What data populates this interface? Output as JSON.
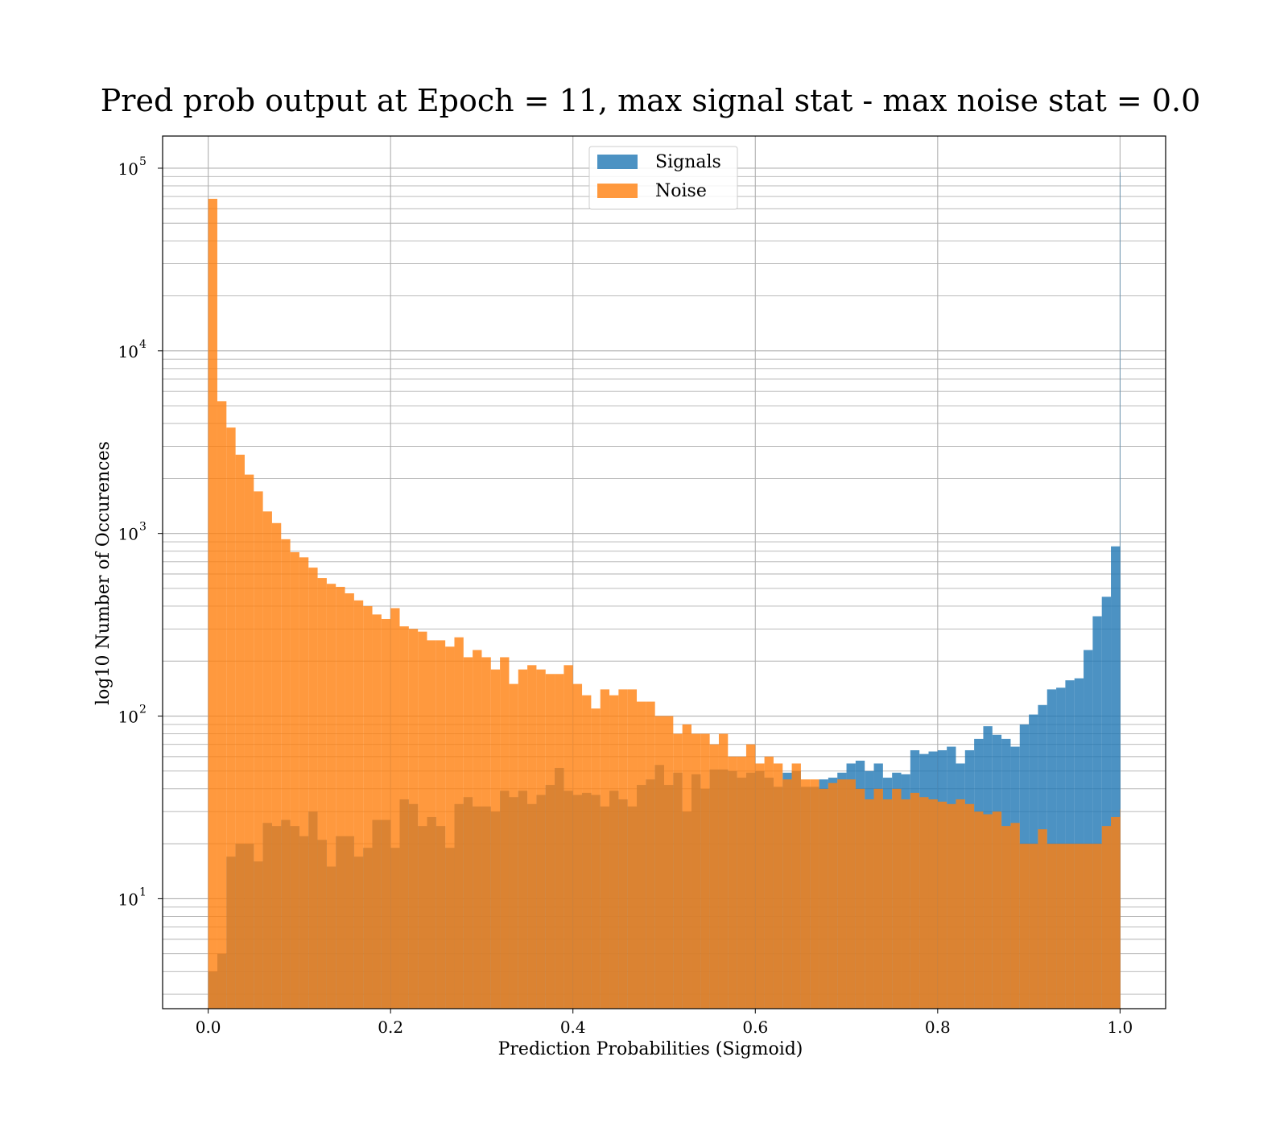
{
  "chart_data": {
    "type": "bar",
    "subtype": "histogram",
    "title": "Pred prob output at Epoch = 11, max signal stat - max noise stat = 0.0",
    "xlabel": "Prediction Probabilities (Sigmoid)",
    "ylabel": "log10 Number of Occurences",
    "xlim": [
      -0.05,
      1.05
    ],
    "ylim": [
      2.5,
      150000
    ],
    "yscale": "log",
    "grid": true,
    "legend_position": "top-center",
    "x_ticks": [
      0.0,
      0.2,
      0.4,
      0.6,
      0.8,
      1.0
    ],
    "x_tick_labels": [
      "0.0",
      "0.2",
      "0.4",
      "0.6",
      "0.8",
      "1.0"
    ],
    "y_ticks": [
      {
        "value": 10,
        "base": "10",
        "exp": "1"
      },
      {
        "value": 100,
        "base": "10",
        "exp": "2"
      },
      {
        "value": 1000,
        "base": "10",
        "exp": "3"
      },
      {
        "value": 10000,
        "base": "10",
        "exp": "4"
      },
      {
        "value": 100000,
        "base": "10",
        "exp": "5"
      }
    ],
    "bin_width": 0.01,
    "bin_start": 0.0,
    "series": [
      {
        "name": "Signals",
        "color": "#1f77b4",
        "opacity": 0.8,
        "values": [
          4,
          5,
          17,
          20,
          20,
          16,
          26,
          25,
          27,
          25,
          22,
          30,
          21,
          15,
          22,
          22,
          17,
          19,
          27,
          27,
          19,
          35,
          33,
          25,
          28,
          25,
          19,
          33,
          36,
          32,
          32,
          30,
          39,
          36,
          39,
          33,
          37,
          42,
          52,
          39,
          37,
          38,
          37,
          32,
          39,
          35,
          32,
          42,
          45,
          54,
          42,
          49,
          30,
          48,
          40,
          51,
          51,
          50,
          46,
          49,
          50,
          46,
          41,
          49,
          50,
          41,
          41,
          45,
          46,
          49,
          55,
          57,
          50,
          55,
          46,
          49,
          48,
          65,
          62,
          64,
          65,
          68,
          55,
          65,
          75,
          88,
          79,
          75,
          68,
          90,
          102,
          115,
          140,
          143,
          157,
          161,
          230,
          352,
          450,
          850,
          95000
        ]
      },
      {
        "name": "Noise",
        "color": "#ff7f0e",
        "opacity": 0.8,
        "values": [
          68000,
          5300,
          3800,
          2700,
          2100,
          1700,
          1320,
          1140,
          930,
          790,
          740,
          650,
          570,
          530,
          510,
          470,
          430,
          400,
          360,
          340,
          390,
          310,
          300,
          290,
          260,
          260,
          240,
          270,
          210,
          230,
          210,
          180,
          210,
          150,
          180,
          190,
          180,
          170,
          170,
          190,
          150,
          130,
          110,
          140,
          130,
          140,
          140,
          120,
          120,
          100,
          100,
          80,
          90,
          80,
          80,
          70,
          80,
          60,
          60,
          70,
          55,
          60,
          55,
          45,
          55,
          45,
          45,
          40,
          43,
          45,
          45,
          40,
          35,
          40,
          35,
          40,
          35,
          38,
          36,
          35,
          34,
          33,
          35,
          33,
          30,
          29,
          30,
          25,
          26,
          20,
          20,
          24,
          20,
          20,
          20,
          20,
          20,
          20,
          25,
          28,
          31
        ]
      }
    ]
  }
}
